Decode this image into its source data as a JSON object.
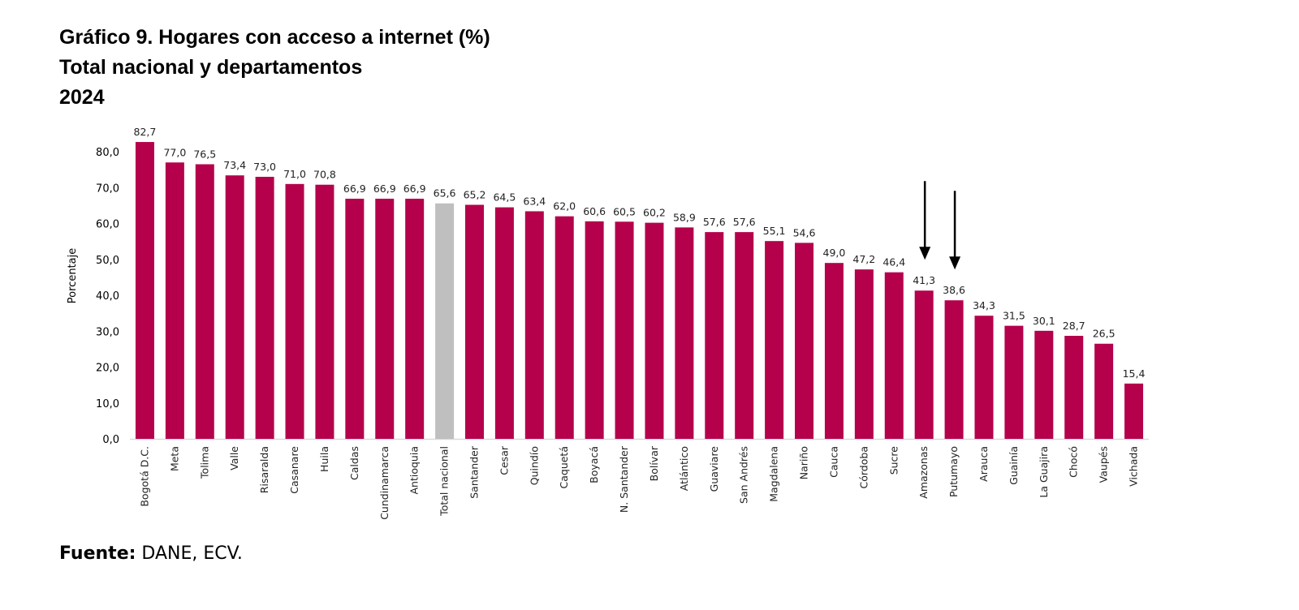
{
  "chart_data": {
    "type": "bar",
    "title": [
      "Gráfico 9. Hogares con acceso a internet (%)",
      "Total nacional y departamentos",
      "2024"
    ],
    "ylabel": "Porcentaje",
    "xlabel": "",
    "ylim": [
      0,
      80
    ],
    "yticks": [
      "0,0",
      "10,0",
      "20,0",
      "30,0",
      "40,0",
      "50,0",
      "60,0",
      "70,0",
      "80,0"
    ],
    "grid": false,
    "legend": "none",
    "categories": [
      "Bogotá D.C.",
      "Meta",
      "Tolima",
      "Valle",
      "Risaralda",
      "Casanare",
      "Huila",
      "Caldas",
      "Cundinamarca",
      "Antioquia",
      "Total nacional",
      "Santander",
      "Cesar",
      "Quindío",
      "Caquetá",
      "Boyacá",
      "N. Santander",
      "Bolívar",
      "Atlántico",
      "Guaviare",
      "San Andrés",
      "Magdalena",
      "Nariño",
      "Cauca",
      "Córdoba",
      "Sucre",
      "Amazonas",
      "Putumayo",
      "Arauca",
      "Guainía",
      "La Guajira",
      "Chocó",
      "Vaupés",
      "Vichada"
    ],
    "values": [
      82.7,
      77.0,
      76.5,
      73.4,
      73.0,
      71.0,
      70.8,
      66.9,
      66.9,
      66.9,
      65.6,
      65.2,
      64.5,
      63.4,
      62.0,
      60.6,
      60.5,
      60.2,
      58.9,
      57.6,
      57.6,
      55.1,
      54.6,
      49.0,
      47.2,
      46.4,
      41.3,
      38.6,
      34.3,
      31.5,
      30.1,
      28.7,
      26.5,
      15.4
    ],
    "data_labels": [
      "82,7",
      "77,0",
      "76,5",
      "73,4",
      "73,0",
      "71,0",
      "70,8",
      "66,9",
      "66,9",
      "66,9",
      "65,6",
      "65,2",
      "64,5",
      "63,4",
      "62,0",
      "60,6",
      "60,5",
      "60,2",
      "58,9",
      "57,6",
      "57,6",
      "55,1",
      "54,6",
      "49,0",
      "47,2",
      "46,4",
      "41,3",
      "38,6",
      "34,3",
      "31,5",
      "30,1",
      "28,7",
      "26,5",
      "15,4"
    ],
    "colors": {
      "bar": "#B5004B",
      "highlight": "#BFBFBF",
      "axis": "#D9D9D9",
      "arrow": "#000000"
    },
    "highlight_category": "Total nacional",
    "annotations": [
      {
        "type": "arrow-down",
        "target": "Amazonas"
      },
      {
        "type": "arrow-down",
        "target": "Putumayo"
      }
    ]
  },
  "source": {
    "label": "Fuente:",
    "text": " DANE, ECV."
  }
}
